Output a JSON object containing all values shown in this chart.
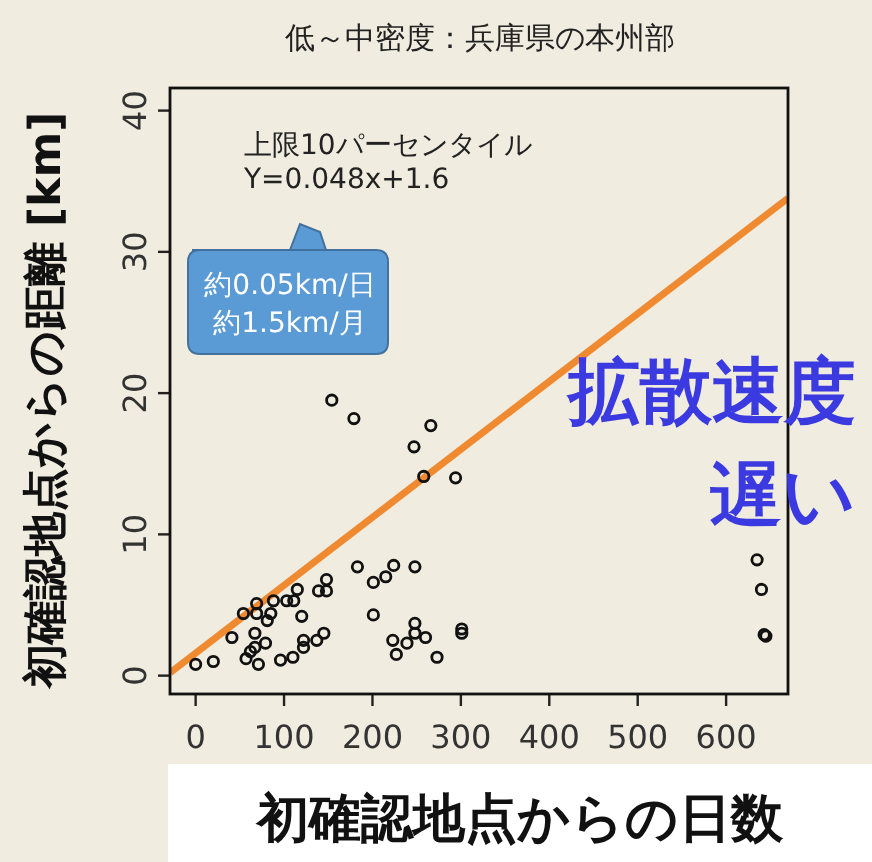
{
  "chart_data": {
    "type": "scatter",
    "title": "低～中密度：兵庫県の本州部",
    "xlabel": "初確認地点からの日数",
    "ylabel": "初確認地点からの距離 [km]",
    "annotations": [
      "上限10パーセンタイル",
      "Y=0.048x+1.6",
      "約0.05km/日",
      "約1.5km/月",
      "拡散速度",
      "遅い"
    ],
    "xlim": [
      -29,
      670
    ],
    "ylim": [
      -1.3,
      41.6
    ],
    "xticks": [
      0,
      100,
      200,
      300,
      400,
      500,
      600
    ],
    "yticks": [
      0,
      10,
      20,
      30,
      40
    ],
    "series": [
      {
        "marker": "circle",
        "color": "#111111",
        "x": [
          0,
          20,
          41,
          54,
          57,
          62,
          67,
          71,
          67,
          69,
          69,
          79,
          81,
          85,
          88,
          96,
          110,
          103,
          115,
          111,
          120,
          122,
          122,
          137,
          145,
          139,
          148,
          148,
          154,
          179,
          183,
          201,
          201,
          223,
          227,
          215,
          224,
          239,
          247,
          248,
          248,
          248,
          266,
          260,
          258,
          273,
          294,
          301,
          301,
          635,
          640,
          643,
          645
        ],
        "values": [
          0.8,
          1.0,
          2.7,
          4.4,
          1.2,
          1.7,
          2.0,
          0.8,
          3.0,
          4.4,
          5.1,
          2.3,
          3.9,
          4.4,
          5.3,
          1.1,
          1.3,
          5.3,
          6.1,
          5.3,
          4.2,
          2.5,
          2.0,
          2.5,
          3.0,
          6.0,
          6.0,
          6.8,
          19.5,
          18.2,
          7.7,
          6.6,
          4.3,
          2.5,
          1.5,
          7.0,
          7.8,
          2.3,
          16.2,
          7.7,
          3.7,
          3.0,
          17.7,
          2.7,
          14.1,
          1.3,
          14.0,
          3.3,
          3.0,
          8.2,
          6.1,
          2.9,
          2.8
        ]
      },
      {
        "type": "line",
        "color": "#f08a30",
        "x": [
          -29,
          670
        ],
        "values": [
          0.2,
          33.8
        ]
      }
    ]
  }
}
